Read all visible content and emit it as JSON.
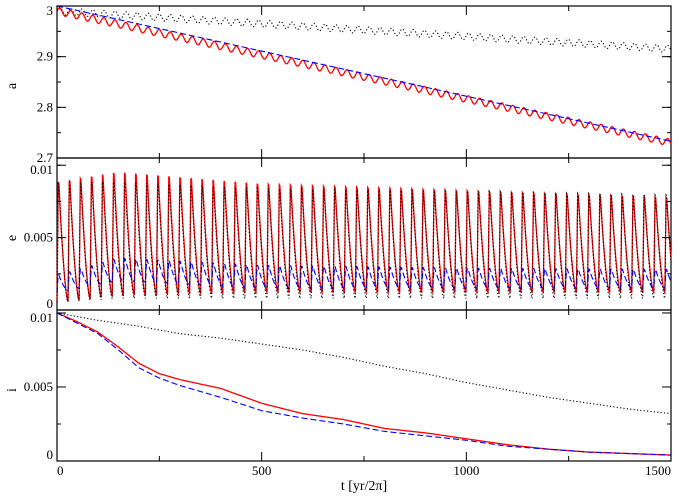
{
  "chart_data": [
    {
      "type": "line",
      "ylabel": "a",
      "ylim": [
        2.7,
        3.0
      ],
      "xlim": [
        0,
        1500
      ],
      "yticks": [
        2.7,
        2.8,
        2.9,
        3.0
      ],
      "ytick_labels": [
        "2.7",
        "2.8",
        "2.9",
        "3"
      ],
      "series": [
        {
          "name": "red solid",
          "color": "#ff0000",
          "style": "solid",
          "x": [
            0,
            1500
          ],
          "y": [
            2.99,
            2.73
          ],
          "oscillation": {
            "amplitude": 0.007,
            "period": 27
          }
        },
        {
          "name": "blue dashed",
          "color": "#0000ff",
          "style": "dashed",
          "x": [
            0,
            1500
          ],
          "y": [
            3.0,
            2.733
          ]
        },
        {
          "name": "black dotted",
          "color": "#000000",
          "style": "dotted",
          "x": [
            0,
            1500
          ],
          "y": [
            2.99,
            2.915
          ],
          "oscillation": {
            "amplitude": 0.007,
            "period": 27
          }
        }
      ]
    },
    {
      "type": "line",
      "ylabel": "e",
      "ylim": [
        0,
        0.0105
      ],
      "xlim": [
        0,
        1500
      ],
      "yticks": [
        0,
        0.005,
        0.01
      ],
      "ytick_labels": [
        "0",
        "0.005",
        "0.01"
      ],
      "series": [
        {
          "name": "red solid",
          "color": "#ff0000",
          "style": "solid",
          "x": [
            0,
            150,
            500,
            1000,
            1500
          ],
          "max": [
            0.0095,
            0.0102,
            0.0093,
            0.0088,
            0.0083
          ],
          "min": [
            0.0005,
            0.001,
            0.0012,
            0.0012,
            0.0012
          ],
          "period": 27
        },
        {
          "name": "blue dashed",
          "color": "#0000ff",
          "style": "dashed",
          "x": [
            0,
            150,
            500,
            1000,
            1500
          ],
          "max": [
            0.0025,
            0.0037,
            0.0032,
            0.003,
            0.0029
          ],
          "min": [
            0.0012,
            0.002,
            0.0015,
            0.0015,
            0.0015
          ],
          "period": 27
        },
        {
          "name": "black dotted",
          "color": "#000000",
          "style": "dotted",
          "x": [
            0,
            150,
            500,
            1000,
            1500
          ],
          "max": [
            0.0095,
            0.0095,
            0.009,
            0.0088,
            0.0085
          ],
          "min": [
            0.0005,
            0.0008,
            0.0008,
            0.0008,
            0.0008
          ],
          "period": 27
        }
      ]
    },
    {
      "type": "line",
      "ylabel": "i",
      "xlabel": "t [yr/2π]",
      "ylim": [
        0,
        0.0102
      ],
      "xlim": [
        0,
        1500
      ],
      "xticks": [
        0,
        500,
        1000,
        1500
      ],
      "xtick_labels": [
        "0",
        "500",
        "1000",
        "1500"
      ],
      "yticks": [
        0,
        0.005,
        0.01
      ],
      "ytick_labels": [
        "0",
        "0.005",
        "0.01"
      ],
      "series": [
        {
          "name": "red solid",
          "color": "#ff0000",
          "style": "solid",
          "x": [
            0,
            50,
            100,
            150,
            200,
            250,
            300,
            400,
            500,
            600,
            700,
            800,
            900,
            1000,
            1100,
            1200,
            1300,
            1400,
            1500
          ],
          "y": [
            0.01,
            0.0094,
            0.0087,
            0.0077,
            0.0066,
            0.0059,
            0.0055,
            0.0049,
            0.0039,
            0.0032,
            0.0028,
            0.0022,
            0.0019,
            0.0015,
            0.0011,
            0.0008,
            0.0006,
            0.0005,
            0.0004
          ]
        },
        {
          "name": "blue dashed",
          "color": "#0000ff",
          "style": "dashed",
          "x": [
            0,
            50,
            100,
            150,
            200,
            250,
            300,
            400,
            500,
            600,
            700,
            800,
            900,
            1000,
            1100,
            1200,
            1300,
            1400,
            1500
          ],
          "y": [
            0.01,
            0.0093,
            0.0086,
            0.0075,
            0.0063,
            0.0056,
            0.0051,
            0.0043,
            0.0034,
            0.0029,
            0.0025,
            0.002,
            0.0017,
            0.0014,
            0.001,
            0.0008,
            0.0006,
            0.0005,
            0.0004
          ]
        },
        {
          "name": "black dotted",
          "color": "#000000",
          "style": "dotted",
          "x": [
            0,
            100,
            200,
            300,
            400,
            500,
            600,
            700,
            800,
            900,
            1000,
            1100,
            1200,
            1300,
            1400,
            1500
          ],
          "y": [
            0.01,
            0.0095,
            0.0091,
            0.0086,
            0.0083,
            0.0079,
            0.0075,
            0.007,
            0.0064,
            0.0059,
            0.0053,
            0.0048,
            0.0043,
            0.0039,
            0.0035,
            0.0032
          ]
        }
      ]
    }
  ]
}
